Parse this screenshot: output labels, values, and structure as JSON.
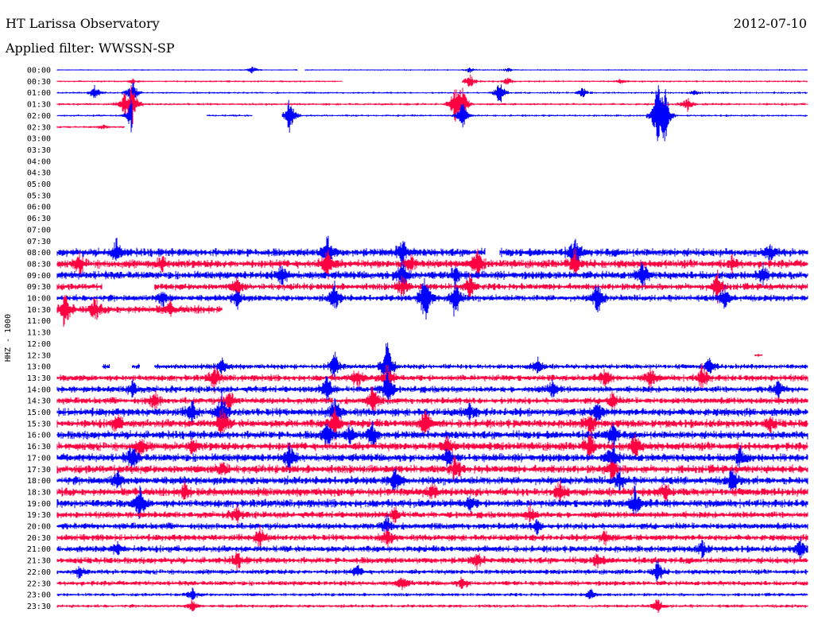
{
  "header": {
    "title": "HT Larissa Observatory",
    "filter": "Applied filter: WWSSN-SP",
    "date": "2012-07-10"
  },
  "chart_data": {
    "type": "line",
    "ylabel": "HHZ - 1000",
    "colors": {
      "blue": "#0000ff",
      "red": "#ff0040"
    },
    "tick_labels": [
      "00:00",
      "00:30",
      "01:00",
      "01:30",
      "02:00",
      "02:30",
      "03:00",
      "03:30",
      "04:00",
      "04:30",
      "05:00",
      "05:30",
      "06:00",
      "06:30",
      "07:00",
      "07:30",
      "08:00",
      "08:30",
      "09:00",
      "09:30",
      "10:00",
      "10:30",
      "11:00",
      "11:30",
      "12:00",
      "12:30",
      "13:00",
      "13:30",
      "14:00",
      "14:30",
      "15:00",
      "15:30",
      "16:00",
      "16:30",
      "17:00",
      "17:30",
      "18:00",
      "18:30",
      "19:00",
      "19:30",
      "20:00",
      "20:30",
      "21:00",
      "21:30",
      "22:00",
      "22:30",
      "23:00",
      "23:30"
    ],
    "series": [
      {
        "label": "00:00",
        "color": "blue",
        "noise": 0.8,
        "segments": [
          [
            0,
            0.32
          ],
          [
            0.33,
            1
          ]
        ],
        "events": [
          [
            0.26,
            6
          ],
          [
            0.55,
            4
          ],
          [
            0.6,
            3
          ]
        ]
      },
      {
        "label": "00:30",
        "color": "red",
        "noise": 1.2,
        "segments": [
          [
            0,
            0.38
          ],
          [
            0.54,
            1
          ]
        ],
        "events": [
          [
            0.1,
            3
          ],
          [
            0.55,
            10
          ],
          [
            0.6,
            5
          ],
          [
            0.75,
            3
          ]
        ]
      },
      {
        "label": "01:00",
        "color": "blue",
        "noise": 1.2,
        "segments": [
          [
            0,
            0.58
          ],
          [
            0.58,
            1
          ]
        ],
        "events": [
          [
            0.05,
            10
          ],
          [
            0.1,
            20
          ],
          [
            0.59,
            18
          ],
          [
            0.7,
            8
          ],
          [
            0.85,
            3
          ]
        ]
      },
      {
        "label": "01:30",
        "color": "red",
        "noise": 1.5,
        "segments": [
          [
            0,
            1
          ]
        ],
        "events": [
          [
            0.09,
            14
          ],
          [
            0.1,
            30
          ],
          [
            0.53,
            22
          ],
          [
            0.54,
            28
          ],
          [
            0.84,
            10
          ]
        ]
      },
      {
        "label": "02:00",
        "color": "blue",
        "noise": 1.3,
        "segments": [
          [
            0,
            0.1
          ],
          [
            0.2,
            0.26
          ],
          [
            0.3,
            1
          ]
        ],
        "events": [
          [
            0.1,
            30
          ],
          [
            0.31,
            28
          ],
          [
            0.54,
            20
          ],
          [
            0.8,
            50
          ],
          [
            0.81,
            35
          ]
        ]
      },
      {
        "label": "02:30",
        "color": "red",
        "noise": 1.3,
        "segments": [
          [
            0,
            0.09
          ]
        ],
        "events": [
          [
            0.06,
            3
          ]
        ]
      },
      {
        "label": "03:00",
        "color": "blue",
        "noise": 0,
        "segments": [],
        "events": []
      },
      {
        "label": "03:30",
        "color": "red",
        "noise": 0,
        "segments": [],
        "events": []
      },
      {
        "label": "04:00",
        "color": "blue",
        "noise": 0,
        "segments": [],
        "events": []
      },
      {
        "label": "04:30",
        "color": "red",
        "noise": 0,
        "segments": [],
        "events": []
      },
      {
        "label": "05:00",
        "color": "blue",
        "noise": 0,
        "segments": [],
        "events": []
      },
      {
        "label": "05:30",
        "color": "red",
        "noise": 0,
        "segments": [],
        "events": []
      },
      {
        "label": "06:00",
        "color": "blue",
        "noise": 0,
        "segments": [],
        "events": []
      },
      {
        "label": "06:30",
        "color": "red",
        "noise": 0,
        "segments": [],
        "events": []
      },
      {
        "label": "07:00",
        "color": "blue",
        "noise": 0,
        "segments": [],
        "events": []
      },
      {
        "label": "07:30",
        "color": "red",
        "noise": 0,
        "segments": [],
        "events": []
      },
      {
        "label": "08:00",
        "color": "blue",
        "noise": 5,
        "segments": [
          [
            0,
            0.57
          ],
          [
            0.59,
            1
          ]
        ],
        "events": [
          [
            0.08,
            18
          ],
          [
            0.36,
            25
          ],
          [
            0.46,
            20
          ],
          [
            0.69,
            22
          ],
          [
            0.95,
            12
          ]
        ]
      },
      {
        "label": "08:30",
        "color": "red",
        "noise": 5,
        "segments": [
          [
            0,
            1
          ]
        ],
        "events": [
          [
            0.03,
            14
          ],
          [
            0.14,
            10
          ],
          [
            0.36,
            25
          ],
          [
            0.47,
            12
          ],
          [
            0.56,
            18
          ],
          [
            0.69,
            20
          ],
          [
            0.9,
            10
          ]
        ]
      },
      {
        "label": "09:00",
        "color": "blue",
        "noise": 5,
        "segments": [
          [
            0,
            1
          ]
        ],
        "events": [
          [
            0.3,
            14
          ],
          [
            0.46,
            25
          ],
          [
            0.53,
            12
          ],
          [
            0.78,
            18
          ],
          [
            0.94,
            14
          ]
        ]
      },
      {
        "label": "09:30",
        "color": "red",
        "noise": 4,
        "segments": [
          [
            0,
            0.06
          ],
          [
            0.13,
            1
          ]
        ],
        "events": [
          [
            0.12,
            10
          ],
          [
            0.24,
            12
          ],
          [
            0.46,
            16
          ],
          [
            0.55,
            15
          ],
          [
            0.88,
            20
          ]
        ]
      },
      {
        "label": "10:00",
        "color": "blue",
        "noise": 4,
        "segments": [
          [
            0,
            1
          ]
        ],
        "events": [
          [
            0.14,
            12
          ],
          [
            0.24,
            14
          ],
          [
            0.37,
            20
          ],
          [
            0.49,
            40
          ],
          [
            0.53,
            30
          ],
          [
            0.72,
            25
          ],
          [
            0.89,
            15
          ]
        ]
      },
      {
        "label": "10:30",
        "color": "red",
        "noise": 5,
        "segments": [
          [
            0,
            0.22
          ]
        ],
        "events": [
          [
            0.01,
            30
          ],
          [
            0.05,
            15
          ],
          [
            0.15,
            8
          ]
        ]
      },
      {
        "label": "11:00",
        "color": "blue",
        "noise": 0,
        "segments": [],
        "events": []
      },
      {
        "label": "11:30",
        "color": "red",
        "noise": 0,
        "segments": [],
        "events": []
      },
      {
        "label": "12:00",
        "color": "blue",
        "noise": 0,
        "segments": [],
        "events": []
      },
      {
        "label": "12:30",
        "color": "red",
        "noise": 2,
        "segments": [
          [
            0.93,
            0.94
          ]
        ],
        "events": []
      },
      {
        "label": "13:00",
        "color": "blue",
        "noise": 3,
        "segments": [
          [
            0.06,
            0.07
          ],
          [
            0.1,
            0.11
          ],
          [
            0.13,
            1
          ]
        ],
        "events": [
          [
            0.22,
            12
          ],
          [
            0.37,
            20
          ],
          [
            0.44,
            40
          ],
          [
            0.64,
            12
          ],
          [
            0.87,
            12
          ]
        ]
      },
      {
        "label": "13:30",
        "color": "red",
        "noise": 4,
        "segments": [
          [
            0,
            1
          ]
        ],
        "events": [
          [
            0.21,
            18
          ],
          [
            0.4,
            14
          ],
          [
            0.44,
            20
          ],
          [
            0.73,
            12
          ],
          [
            0.79,
            16
          ],
          [
            0.86,
            18
          ]
        ]
      },
      {
        "label": "14:00",
        "color": "blue",
        "noise": 4,
        "segments": [
          [
            0,
            1
          ]
        ],
        "events": [
          [
            0.1,
            12
          ],
          [
            0.36,
            20
          ],
          [
            0.44,
            28
          ],
          [
            0.66,
            12
          ],
          [
            0.96,
            12
          ]
        ]
      },
      {
        "label": "14:30",
        "color": "red",
        "noise": 4,
        "segments": [
          [
            0,
            1
          ]
        ],
        "events": [
          [
            0.13,
            14
          ],
          [
            0.23,
            16
          ],
          [
            0.42,
            22
          ],
          [
            0.74,
            12
          ]
        ]
      },
      {
        "label": "15:00",
        "color": "blue",
        "noise": 5,
        "segments": [
          [
            0,
            1
          ]
        ],
        "events": [
          [
            0.18,
            16
          ],
          [
            0.22,
            28
          ],
          [
            0.37,
            24
          ],
          [
            0.55,
            10
          ],
          [
            0.72,
            14
          ]
        ]
      },
      {
        "label": "15:30",
        "color": "red",
        "noise": 5,
        "segments": [
          [
            0,
            1
          ]
        ],
        "events": [
          [
            0.08,
            12
          ],
          [
            0.22,
            22
          ],
          [
            0.37,
            24
          ],
          [
            0.49,
            18
          ],
          [
            0.71,
            16
          ],
          [
            0.95,
            10
          ]
        ]
      },
      {
        "label": "16:00",
        "color": "blue",
        "noise": 5,
        "segments": [
          [
            0,
            1
          ]
        ],
        "events": [
          [
            0.36,
            20
          ],
          [
            0.39,
            14
          ],
          [
            0.42,
            18
          ],
          [
            0.74,
            18
          ]
        ]
      },
      {
        "label": "16:30",
        "color": "red",
        "noise": 5,
        "segments": [
          [
            0,
            1
          ]
        ],
        "events": [
          [
            0.11,
            14
          ],
          [
            0.18,
            10
          ],
          [
            0.52,
            12
          ],
          [
            0.71,
            22
          ],
          [
            0.77,
            16
          ]
        ]
      },
      {
        "label": "17:00",
        "color": "blue",
        "noise": 5,
        "segments": [
          [
            0,
            1
          ]
        ],
        "events": [
          [
            0.1,
            18
          ],
          [
            0.31,
            18
          ],
          [
            0.52,
            12
          ],
          [
            0.74,
            20
          ],
          [
            0.91,
            14
          ]
        ]
      },
      {
        "label": "17:30",
        "color": "red",
        "noise": 5,
        "segments": [
          [
            0,
            1
          ]
        ],
        "events": [
          [
            0.22,
            12
          ],
          [
            0.53,
            16
          ],
          [
            0.74,
            14
          ]
        ]
      },
      {
        "label": "18:00",
        "color": "blue",
        "noise": 5,
        "segments": [
          [
            0,
            1
          ]
        ],
        "events": [
          [
            0.08,
            14
          ],
          [
            0.45,
            16
          ],
          [
            0.75,
            14
          ],
          [
            0.9,
            16
          ]
        ]
      },
      {
        "label": "18:30",
        "color": "red",
        "noise": 5,
        "segments": [
          [
            0,
            1
          ]
        ],
        "events": [
          [
            0.17,
            12
          ],
          [
            0.5,
            10
          ],
          [
            0.67,
            14
          ],
          [
            0.81,
            12
          ]
        ]
      },
      {
        "label": "19:00",
        "color": "blue",
        "noise": 5,
        "segments": [
          [
            0,
            1
          ]
        ],
        "events": [
          [
            0.11,
            22
          ],
          [
            0.55,
            10
          ],
          [
            0.77,
            22
          ]
        ]
      },
      {
        "label": "19:30",
        "color": "red",
        "noise": 4,
        "segments": [
          [
            0,
            1
          ]
        ],
        "events": [
          [
            0.24,
            12
          ],
          [
            0.45,
            10
          ],
          [
            0.63,
            12
          ]
        ]
      },
      {
        "label": "20:00",
        "color": "blue",
        "noise": 4,
        "segments": [
          [
            0,
            1
          ]
        ],
        "events": [
          [
            0.44,
            14
          ],
          [
            0.64,
            10
          ]
        ]
      },
      {
        "label": "20:30",
        "color": "red",
        "noise": 4,
        "segments": [
          [
            0,
            1
          ]
        ],
        "events": [
          [
            0.27,
            16
          ],
          [
            0.44,
            14
          ],
          [
            0.73,
            10
          ]
        ]
      },
      {
        "label": "21:00",
        "color": "blue",
        "noise": 4,
        "segments": [
          [
            0,
            1
          ]
        ],
        "events": [
          [
            0.08,
            10
          ],
          [
            0.86,
            12
          ],
          [
            0.99,
            14
          ]
        ]
      },
      {
        "label": "21:30",
        "color": "red",
        "noise": 4,
        "segments": [
          [
            0,
            1
          ]
        ],
        "events": [
          [
            0.24,
            12
          ],
          [
            0.56,
            10
          ],
          [
            0.72,
            10
          ]
        ]
      },
      {
        "label": "22:00",
        "color": "blue",
        "noise": 3,
        "segments": [
          [
            0,
            1
          ]
        ],
        "events": [
          [
            0.03,
            8
          ],
          [
            0.4,
            8
          ],
          [
            0.8,
            18
          ]
        ]
      },
      {
        "label": "22:30",
        "color": "red",
        "noise": 3,
        "segments": [
          [
            0,
            1
          ]
        ],
        "events": [
          [
            0.46,
            10
          ],
          [
            0.54,
            8
          ]
        ]
      },
      {
        "label": "23:00",
        "color": "blue",
        "noise": 2,
        "segments": [
          [
            0,
            1
          ]
        ],
        "events": [
          [
            0.18,
            8
          ],
          [
            0.71,
            8
          ]
        ]
      },
      {
        "label": "23:30",
        "color": "red",
        "noise": 2,
        "segments": [
          [
            0,
            1
          ]
        ],
        "events": [
          [
            0.18,
            8
          ],
          [
            0.8,
            10
          ]
        ]
      }
    ]
  }
}
